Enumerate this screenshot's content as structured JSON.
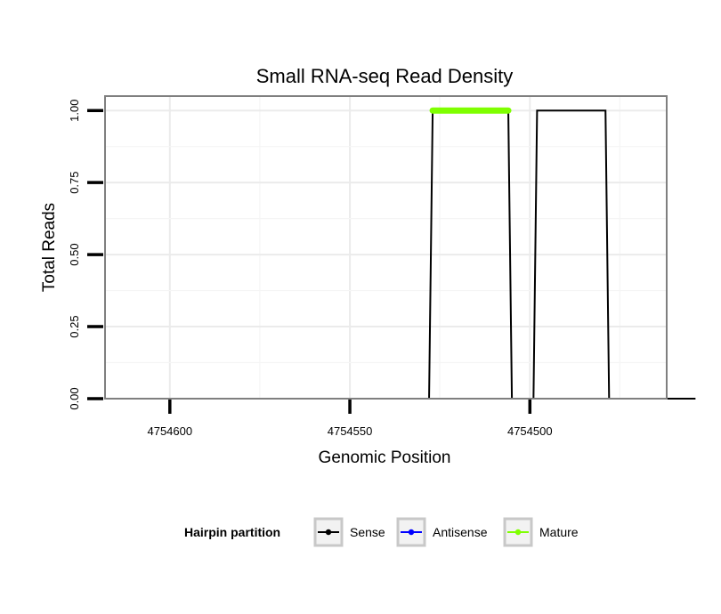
{
  "chart_data": {
    "type": "line",
    "title": "Small RNA-seq Read Density",
    "xlabel": "Genomic Position",
    "ylabel": "Total Reads",
    "x_axis_reversed": true,
    "xlim": [
      4754618,
      4754462
    ],
    "ylim": [
      0,
      1.05
    ],
    "x_ticks": [
      4754600,
      4754550,
      4754500
    ],
    "x_tick_labels": [
      "4754600",
      "4754550",
      "4754500"
    ],
    "y_ticks": [
      0,
      0.25,
      0.5,
      0.75,
      1.0
    ],
    "y_tick_labels": [
      "0.00",
      "0.25",
      "0.50",
      "0.75",
      "1.00"
    ],
    "grid": true,
    "legend": {
      "position": "bottom",
      "title": "Hairpin partition",
      "entries": [
        "Sense",
        "Antisense",
        "Mature"
      ]
    },
    "series": [
      {
        "name": "Sense",
        "color": "#000000",
        "x": [
          4754610,
          4754528,
          4754527,
          4754506,
          4754505,
          4754499,
          4754498,
          4754479,
          4754478,
          4754454
        ],
        "y": [
          0,
          0,
          1,
          1,
          0,
          0,
          1,
          1,
          0,
          0
        ]
      },
      {
        "name": "Antisense",
        "color": "#0000ff",
        "x": [
          4754528,
          4754478
        ],
        "y": [
          0,
          0
        ]
      },
      {
        "name": "Mature",
        "color": "#7fff00",
        "x": [
          4754527,
          4754506
        ],
        "y": [
          1,
          1
        ]
      }
    ]
  }
}
